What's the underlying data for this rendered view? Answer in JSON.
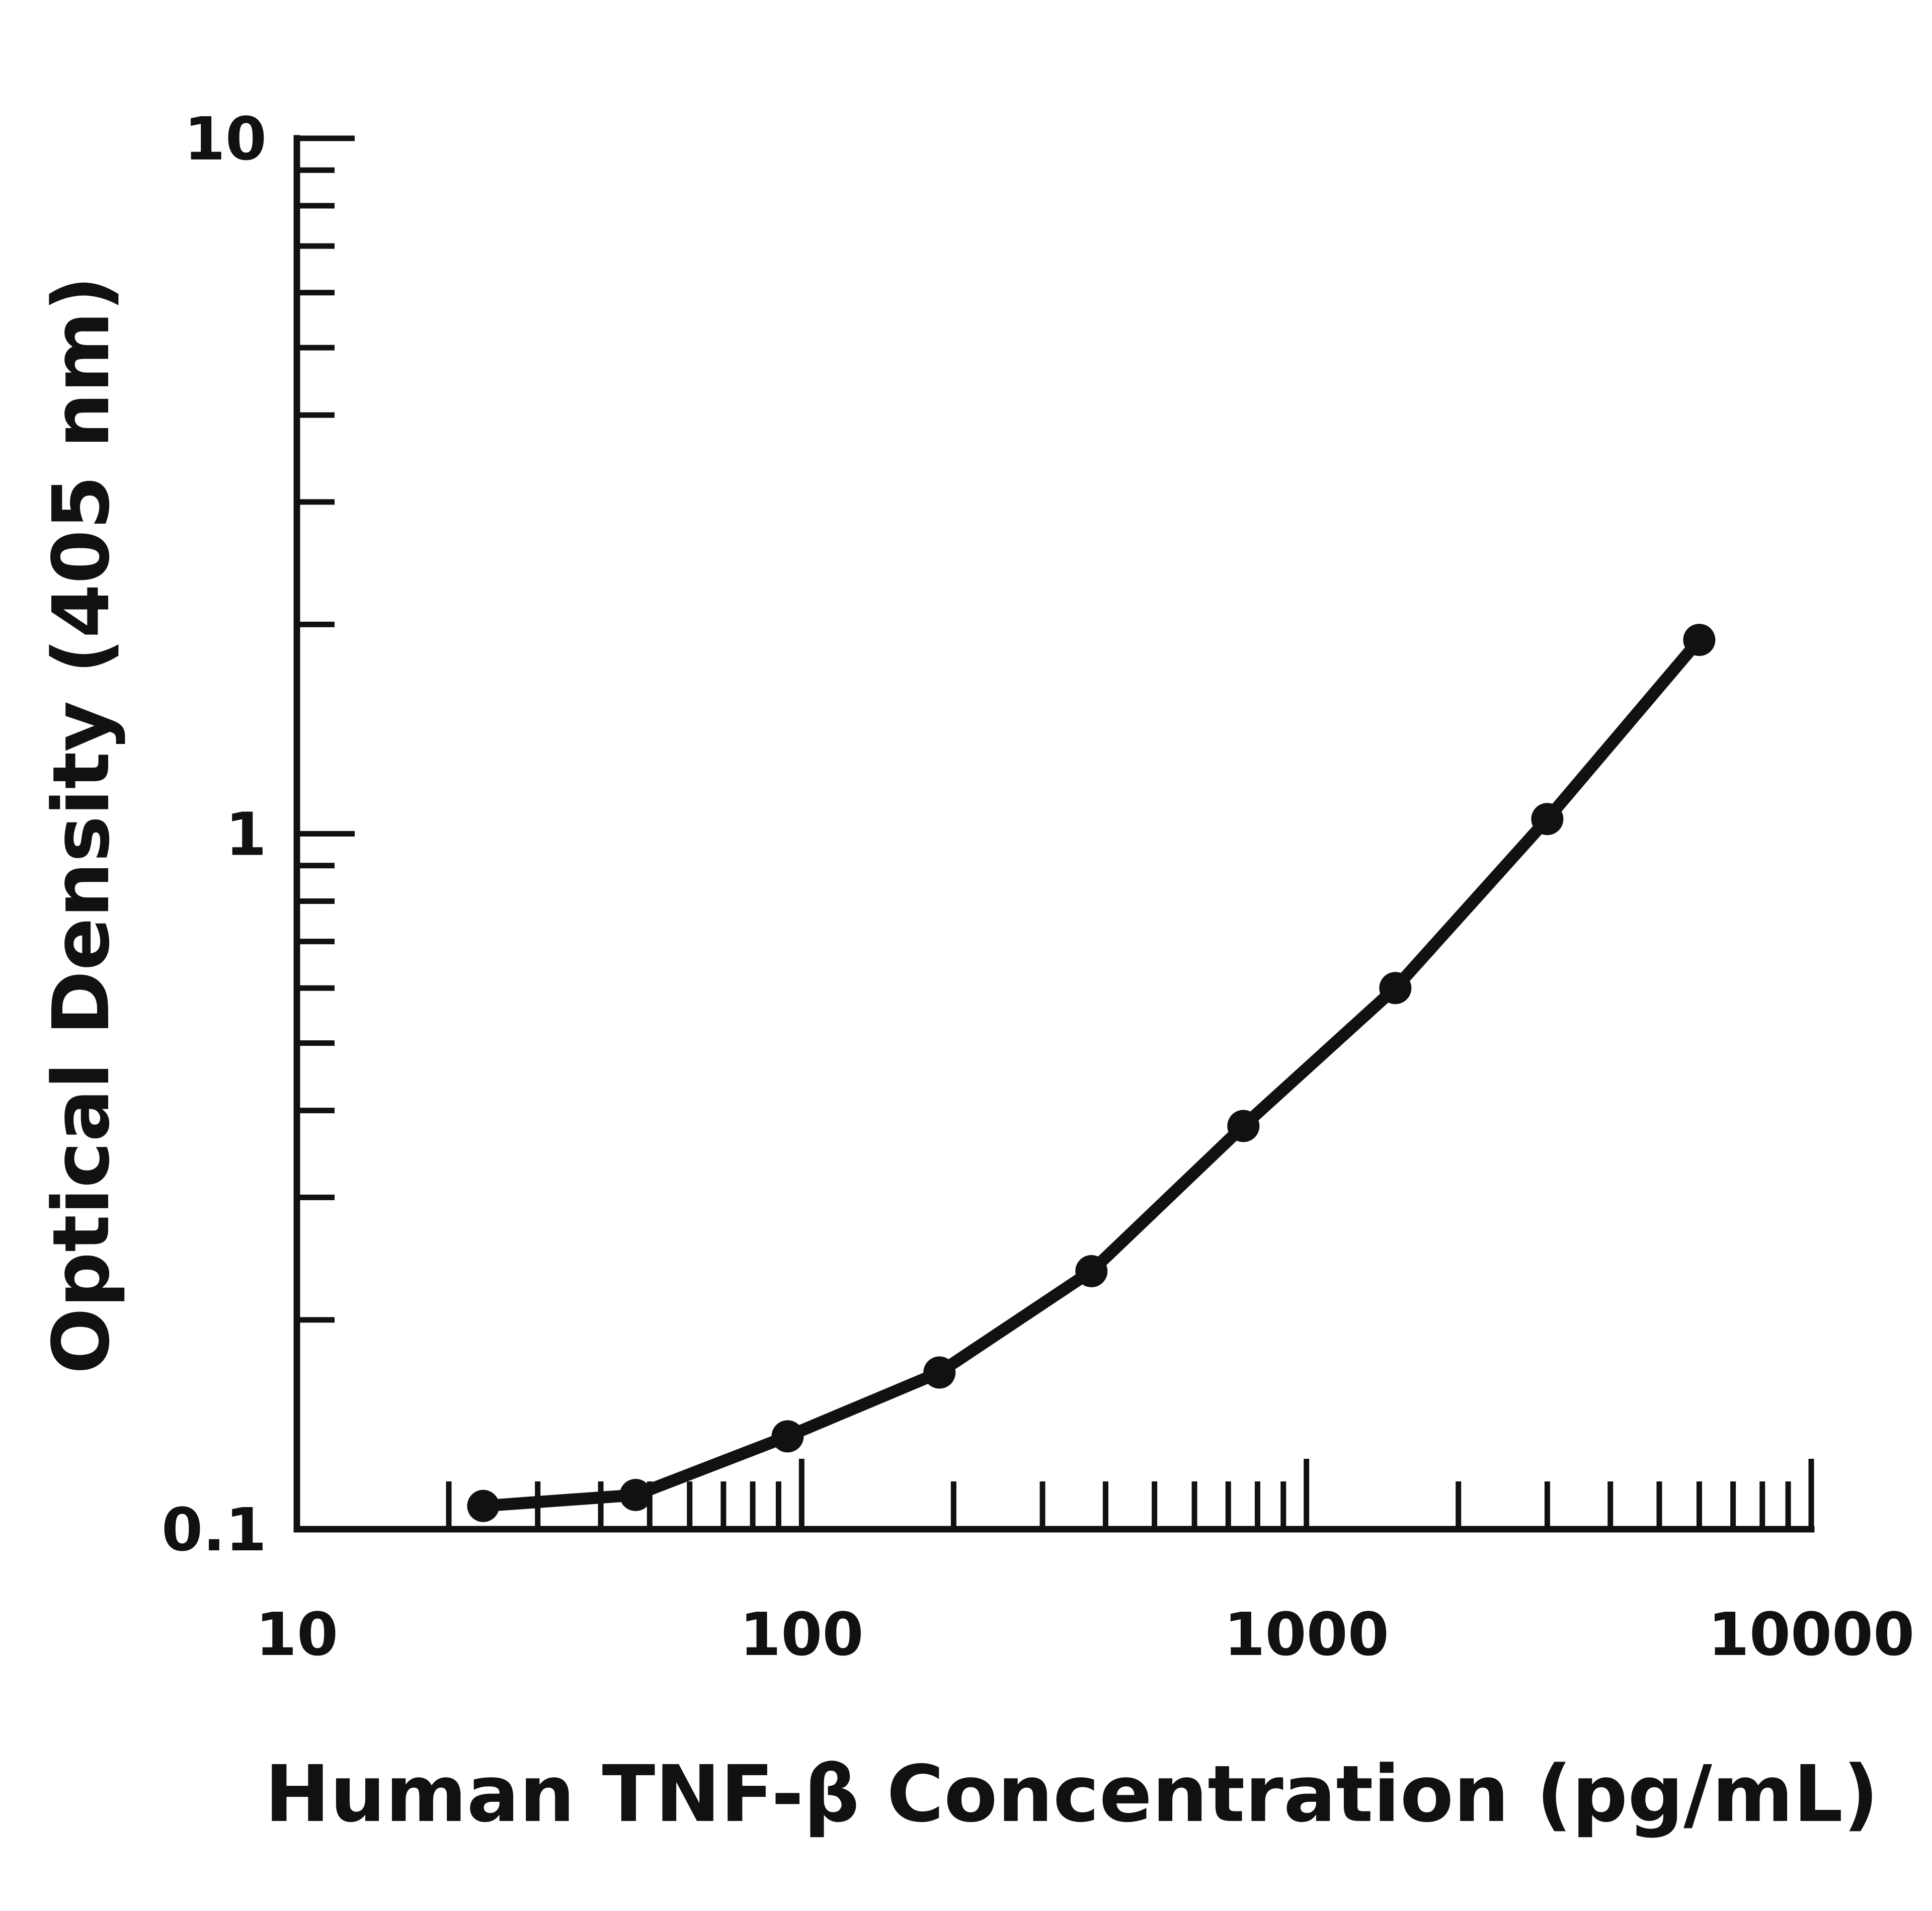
{
  "chart_data": {
    "type": "line",
    "title": "",
    "xlabel": "Human TNF-β Concentration (pg/mL)",
    "ylabel": "Optical Density (405 nm)",
    "x_scale": "log",
    "y_scale": "log",
    "xlim": [
      10,
      10000
    ],
    "ylim": [
      0.1,
      10
    ],
    "x_ticks": [
      "10",
      "100",
      "1000",
      "10000"
    ],
    "y_ticks": [
      "0.1",
      "1",
      "10"
    ],
    "grid": false,
    "legend": "none",
    "series": [
      {
        "x": [
          23.4,
          46.9,
          93.8,
          187.5,
          375,
          750,
          1500,
          3000,
          6000
        ],
        "y": [
          0.108,
          0.112,
          0.136,
          0.168,
          0.235,
          0.38,
          0.6,
          1.05,
          1.9
        ]
      }
    ]
  }
}
